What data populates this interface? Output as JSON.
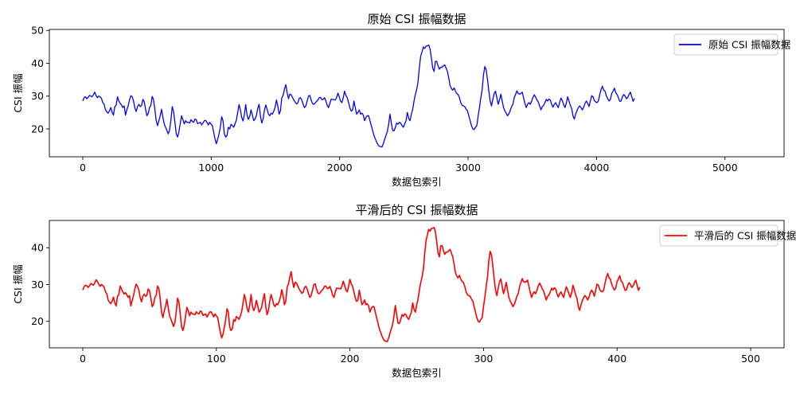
{
  "chart_data": [
    {
      "type": "line",
      "title": "原始 CSI 振幅数据",
      "xlabel": "数据包索引",
      "ylabel": "CSI 振幅",
      "xlim": [
        -260,
        5460
      ],
      "ylim": [
        11.5,
        50.3
      ],
      "xticks": [
        0,
        1000,
        2000,
        3000,
        4000,
        5000
      ],
      "yticks": [
        20,
        30,
        40,
        50
      ],
      "grid": false,
      "legend_position": "top-right",
      "series": [
        {
          "name": "原始 CSI 振幅数据",
          "color": "#0000ff",
          "x_step": 10.4,
          "values": [
            28.5,
            29.5,
            29.8,
            29.2,
            29.6,
            30.2,
            30.0,
            29.8,
            30.4,
            31.2,
            30.1,
            29.5,
            30.0,
            29.8,
            29.3,
            28.0,
            27.5,
            25.8,
            25.2,
            24.8,
            25.5,
            26.5,
            25.0,
            24.2,
            26.8,
            27.2,
            29.8,
            28.5,
            27.8,
            27.3,
            26.5,
            27.0,
            24.2,
            25.8,
            27.0,
            28.8,
            30.1,
            29.8,
            28.5,
            26.4,
            25.3,
            26.8,
            27.5,
            26.8,
            27.1,
            29.0,
            28.3,
            26.1,
            24.0,
            24.7,
            26.5,
            27.1,
            29.9,
            28.9,
            25.9,
            22.5,
            21.0,
            22.5,
            24.0,
            26.0,
            23.5,
            21.5,
            20.5,
            19.5,
            18.5,
            19.7,
            22.6,
            26.8,
            25.2,
            22.0,
            18.5,
            17.5,
            19.2,
            21.7,
            24.0,
            22.8,
            21.5,
            22.5,
            22.0,
            22.0,
            21.8,
            22.8,
            22.3,
            22.0,
            23.0,
            22.8,
            21.6,
            21.8,
            22.0,
            21.2,
            21.8,
            22.5,
            22.6,
            22.0,
            21.2,
            22.0,
            21.5,
            21.0,
            19.0,
            17.0,
            15.5,
            16.8,
            18.5,
            20.5,
            23.7,
            22.5,
            18.5,
            17.5,
            18.0,
            20.5,
            20.0,
            21.4,
            21.0,
            20.5,
            21.5,
            22.7,
            25.0,
            27.4,
            25.8,
            23.5,
            22.4,
            24.4,
            27.4,
            24.2,
            22.9,
            23.8,
            25.8,
            24.2,
            22.5,
            23.0,
            24.1,
            26.2,
            27.5,
            24.0,
            21.8,
            23.0,
            25.7,
            27.3,
            26.0,
            24.5,
            24.0,
            24.8,
            24.5,
            25.4,
            26.6,
            28.8,
            27.0,
            24.5,
            25.5,
            29.5,
            30.2,
            32.1,
            33.5,
            31.0,
            29.2,
            30.6,
            30.4,
            29.6,
            28.8,
            28.2,
            27.6,
            27.9,
            29.3,
            29.5,
            28.8,
            27.5,
            26.5,
            27.0,
            28.5,
            30.0,
            30.2,
            28.8,
            27.7,
            27.5,
            27.9,
            28.4,
            28.8,
            29.5,
            29.6,
            28.9,
            29.0,
            29.5,
            28.5,
            27.2,
            26.5,
            27.8,
            29.1,
            29.0,
            28.9,
            28.8,
            29.5,
            30.9,
            29.8,
            28.5,
            28.0,
            29.5,
            31.5,
            30.2,
            29.5,
            28.0,
            26.4,
            25.4,
            25.8,
            28.5,
            26.5,
            24.5,
            25.0,
            25.8,
            24.5,
            24.8,
            24.2,
            22.5,
            23.5,
            24.0,
            24.0,
            22.5,
            21.0,
            19.5,
            18.0,
            17.0,
            16.0,
            15.2,
            14.7,
            14.6,
            14.5,
            15.5,
            16.8,
            18.0,
            19.2,
            21.5,
            24.5,
            21.8,
            19.5,
            19.4,
            20.4,
            21.8,
            21.4,
            22.0,
            21.8,
            21.0,
            20.5,
            21.5,
            22.5,
            25.0,
            23.2,
            22.5,
            24.5,
            26.0,
            28.5,
            30.5,
            32.0,
            34.4,
            38.8,
            42.2,
            43.5,
            45.0,
            44.5,
            45.2,
            45.3,
            45.6,
            44.3,
            41.6,
            38.5,
            37.5,
            40.6,
            40.6,
            39.2,
            38.2,
            38.8,
            38.8,
            39.2,
            39.5,
            38.5,
            37.5,
            35.5,
            33.2,
            32.3,
            31.8,
            32.5,
            31.5,
            30.8,
            30.5,
            29.5,
            28.0,
            27.2,
            27.0,
            26.8,
            26.0,
            25.5,
            24.0,
            22.5,
            21.0,
            20.0,
            19.8,
            20.5,
            21.0,
            24.0,
            26.5,
            29.5,
            32.0,
            36.5,
            39.0,
            38.0,
            35.0,
            31.5,
            28.5,
            27.0,
            29.0,
            30.8,
            31.5,
            29.5,
            27.5,
            28.8,
            30.6,
            28.5,
            26.5,
            25.5,
            24.8,
            24.0,
            24.6,
            25.6,
            26.8,
            27.5,
            29.5,
            30.5,
            31.6,
            30.8,
            30.6,
            30.8,
            31.2,
            29.5,
            27.8,
            26.5,
            27.5,
            28.0,
            27.5,
            28.4,
            29.6,
            30.4,
            29.7,
            28.8,
            28.2,
            27.0,
            25.8,
            26.8,
            27.2,
            28.0,
            29.0,
            28.5,
            29.1,
            28.8,
            27.5,
            26.6,
            27.5,
            28.0,
            27.2,
            26.5,
            28.1,
            29.4,
            28.6,
            27.4,
            26.5,
            27.8,
            29.8,
            28.5,
            27.2,
            26.2,
            24.0,
            23.0,
            24.5,
            25.6,
            26.5,
            27.0,
            26.5,
            25.8,
            26.6,
            27.8,
            28.5,
            27.8,
            26.8,
            28.5,
            30.1,
            29.8,
            28.6,
            28.2,
            28.0,
            28.5,
            30.4,
            32.0,
            33.0,
            31.8,
            31.5,
            30.0,
            29.2,
            28.5,
            29.0,
            30.8,
            31.5,
            32.4,
            31.0,
            30.5,
            29.5,
            28.4,
            28.5,
            29.8,
            30.5,
            30.0,
            29.2,
            29.6,
            30.5,
            31.2,
            29.8,
            28.4,
            29.3
          ]
        }
      ]
    },
    {
      "type": "line",
      "title": "平滑后的 CSI 振幅数据",
      "xlabel": "数据包索引",
      "ylabel": "CSI 振幅",
      "xlim": [
        -25,
        525
      ],
      "ylim": [
        12.8,
        47.4
      ],
      "xticks": [
        0,
        100,
        200,
        300,
        400,
        500
      ],
      "yticks": [
        20,
        30,
        40
      ],
      "grid": false,
      "legend_position": "top-right",
      "series": [
        {
          "name": "平滑后的 CSI 振幅数据",
          "color": "#ff0000",
          "x_step": 1,
          "values": [
            28.5,
            29.4,
            29.8,
            29.7,
            29.2,
            29.6,
            30.3,
            30.1,
            29.8,
            30.4,
            31.3,
            30.8,
            30.1,
            29.5,
            30.0,
            29.7,
            29.3,
            28.0,
            27.5,
            25.8,
            25.2,
            24.8,
            25.5,
            26.6,
            25.0,
            24.2,
            26.8,
            27.2,
            29.6,
            28.8,
            28.0,
            27.4,
            27.8,
            27.2,
            26.5,
            27.0,
            24.2,
            25.6,
            27.0,
            28.8,
            30.1,
            29.5,
            28.5,
            26.4,
            25.3,
            26.8,
            27.4,
            26.8,
            27.1,
            28.8,
            28.3,
            26.3,
            24.0,
            24.6,
            26.5,
            27.1,
            29.6,
            28.9,
            26.0,
            22.5,
            21.0,
            22.8,
            24.1,
            26.0,
            23.7,
            21.5,
            20.6,
            19.6,
            18.6,
            19.7,
            22.6,
            26.3,
            25.2,
            22.0,
            18.5,
            17.5,
            19.0,
            21.5,
            23.8,
            22.8,
            21.5,
            22.5,
            22.0,
            22.0,
            21.8,
            22.6,
            22.2,
            22.0,
            22.8,
            22.6,
            21.6,
            21.8,
            22.0,
            21.2,
            21.8,
            22.5,
            22.6,
            22.0,
            21.2,
            22.0,
            21.5,
            21.0,
            19.0,
            17.0,
            15.5,
            16.5,
            18.4,
            20.5,
            23.4,
            22.5,
            18.5,
            17.5,
            18.0,
            20.5,
            20.0,
            21.3,
            21.0,
            20.5,
            21.5,
            22.7,
            25.0,
            27.3,
            25.8,
            23.5,
            22.5,
            24.4,
            27.3,
            24.2,
            22.9,
            23.8,
            25.7,
            24.2,
            22.5,
            23.0,
            24.0,
            26.0,
            27.5,
            24.0,
            21.8,
            23.0,
            25.5,
            27.3,
            26.0,
            24.5,
            24.0,
            24.8,
            24.5,
            25.4,
            26.6,
            28.6,
            27.0,
            24.5,
            25.5,
            29.3,
            30.2,
            32.0,
            33.5,
            31.0,
            29.2,
            30.6,
            30.4,
            29.6,
            28.8,
            28.2,
            27.6,
            27.9,
            29.2,
            29.5,
            28.8,
            27.5,
            26.5,
            27.0,
            28.5,
            30.0,
            30.2,
            28.8,
            27.7,
            27.5,
            27.9,
            28.4,
            28.8,
            29.5,
            29.6,
            28.9,
            29.0,
            29.5,
            28.5,
            27.2,
            26.5,
            27.8,
            29.0,
            29.0,
            28.9,
            28.8,
            29.5,
            30.9,
            29.8,
            28.5,
            28.0,
            29.5,
            31.4,
            30.2,
            29.5,
            28.0,
            26.4,
            25.4,
            25.8,
            28.5,
            26.5,
            24.5,
            25.0,
            25.8,
            24.5,
            24.8,
            24.2,
            22.5,
            23.5,
            24.0,
            24.0,
            22.5,
            21.0,
            19.5,
            18.0,
            17.0,
            16.0,
            15.2,
            14.7,
            14.6,
            14.5,
            15.5,
            16.8,
            18.0,
            19.2,
            21.5,
            24.3,
            21.8,
            19.5,
            19.4,
            20.4,
            21.8,
            21.4,
            22.0,
            21.8,
            21.0,
            20.5,
            21.5,
            22.5,
            25.0,
            23.2,
            22.5,
            24.5,
            26.0,
            28.5,
            30.5,
            32.0,
            34.2,
            38.5,
            42.0,
            43.5,
            45.0,
            44.5,
            45.2,
            45.3,
            45.5,
            44.3,
            41.6,
            38.5,
            37.5,
            40.5,
            40.6,
            39.2,
            38.2,
            38.8,
            38.8,
            39.2,
            39.5,
            38.5,
            37.5,
            35.5,
            33.2,
            32.3,
            31.8,
            32.5,
            31.5,
            30.8,
            30.5,
            29.5,
            28.0,
            27.2,
            27.0,
            26.8,
            26.0,
            25.5,
            24.0,
            22.5,
            21.0,
            20.0,
            19.8,
            20.5,
            21.0,
            24.0,
            26.5,
            29.5,
            32.0,
            36.5,
            39.0,
            38.0,
            35.0,
            31.5,
            28.5,
            27.0,
            29.0,
            30.8,
            31.5,
            29.5,
            27.5,
            28.8,
            30.6,
            28.5,
            26.5,
            25.5,
            24.8,
            24.0,
            24.6,
            25.6,
            26.8,
            27.5,
            29.5,
            30.5,
            31.6,
            30.8,
            30.6,
            30.8,
            31.2,
            29.5,
            27.8,
            26.5,
            27.5,
            28.0,
            27.5,
            28.4,
            29.6,
            30.4,
            29.7,
            28.8,
            28.2,
            27.0,
            25.8,
            26.8,
            27.2,
            28.0,
            29.0,
            28.5,
            29.1,
            28.8,
            27.5,
            26.6,
            27.5,
            28.0,
            27.2,
            26.5,
            28.1,
            29.4,
            28.6,
            27.4,
            26.5,
            27.8,
            29.8,
            28.5,
            27.2,
            26.2,
            24.0,
            23.0,
            24.5,
            25.6,
            26.5,
            27.0,
            26.5,
            25.8,
            26.6,
            27.8,
            28.5,
            27.8,
            26.8,
            28.5,
            30.1,
            29.8,
            28.6,
            28.2,
            28.0,
            28.5,
            30.4,
            32.0,
            33.0,
            31.8,
            31.5,
            30.0,
            29.2,
            28.5,
            29.0,
            30.8,
            31.5,
            32.4,
            31.0,
            30.5,
            29.5,
            28.4,
            28.5,
            29.8,
            30.5,
            30.0,
            29.2,
            29.6,
            30.5,
            31.2,
            29.8,
            28.4,
            29.3
          ]
        }
      ]
    }
  ]
}
